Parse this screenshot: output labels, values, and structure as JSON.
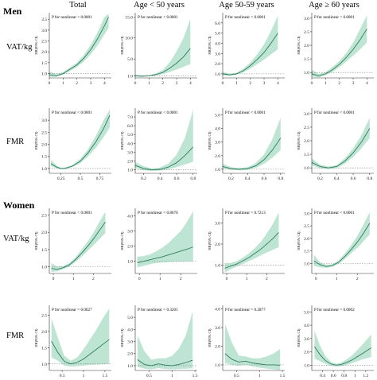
{
  "figure": {
    "sections": [
      "Men",
      "Women"
    ],
    "columns": [
      "Total",
      "Age < 50 years",
      "Age 50-59 years",
      "Age ≥ 60 years"
    ],
    "ylabel": "HR(95% CI)"
  },
  "colors": {
    "band": "#a8dcc6",
    "curve": "#2e7d5b",
    "reference": "#888888"
  },
  "chart_data": [
    {
      "section": "Men",
      "row": "VAT/kg",
      "column": "Total",
      "type": "area",
      "p_text": "P for nonlinear < 0.0001",
      "xlim": [
        0,
        4.5
      ],
      "ylim": [
        0.8,
        3.8
      ],
      "xticks": [
        0,
        1,
        2,
        3,
        4
      ],
      "yticks": [
        1.0,
        1.5,
        2.0,
        2.5,
        3.0,
        3.5
      ],
      "ref": 1.0,
      "x": [
        0,
        0.5,
        1,
        1.5,
        2,
        2.5,
        3,
        3.5,
        4,
        4.3
      ],
      "y": [
        0.95,
        0.9,
        1.0,
        1.2,
        1.4,
        1.7,
        2.1,
        2.6,
        3.2,
        3.6
      ],
      "lower": [
        0.85,
        0.85,
        0.95,
        1.12,
        1.3,
        1.55,
        1.88,
        2.3,
        2.8,
        3.1
      ],
      "upper": [
        1.1,
        0.97,
        1.06,
        1.28,
        1.5,
        1.85,
        2.32,
        2.9,
        3.6,
        3.75
      ]
    },
    {
      "section": "Men",
      "row": "VAT/kg",
      "column": "Age < 50 years",
      "type": "area",
      "p_text": "P for nonlinear < 0.0001",
      "xlim": [
        0,
        4.5
      ],
      "ylim": [
        0.5,
        16
      ],
      "xticks": [
        0,
        1,
        2,
        3,
        4
      ],
      "yticks": [
        1.0,
        5.0,
        10.0,
        15.0
      ],
      "ref": 1.0,
      "x": [
        0,
        0.5,
        1,
        1.5,
        2,
        2.5,
        3,
        3.5,
        4
      ],
      "y": [
        1.0,
        0.9,
        1.0,
        1.3,
        1.8,
        2.8,
        4.0,
        5.5,
        7.5
      ],
      "lower": [
        0.8,
        0.75,
        0.9,
        1.1,
        1.4,
        1.9,
        2.5,
        3.1,
        3.8
      ],
      "upper": [
        1.3,
        1.05,
        1.15,
        1.6,
        2.4,
        4.2,
        6.8,
        10.0,
        14.5
      ]
    },
    {
      "section": "Men",
      "row": "VAT/kg",
      "column": "Age 50-59 years",
      "type": "area",
      "p_text": "P for nonlinear < 0.0001",
      "xlim": [
        0,
        4.5
      ],
      "ylim": [
        0.6,
        7
      ],
      "xticks": [
        0,
        1,
        2,
        3,
        4
      ],
      "yticks": [
        1.0,
        2.0,
        3.0,
        4.0,
        5.0,
        6.0
      ],
      "ref": 1.0,
      "x": [
        0,
        0.5,
        1,
        1.5,
        2,
        2.5,
        3,
        3.5,
        4
      ],
      "y": [
        1.0,
        0.9,
        1.0,
        1.3,
        1.8,
        2.4,
        3.1,
        4.0,
        5.0
      ],
      "lower": [
        0.85,
        0.8,
        0.92,
        1.15,
        1.5,
        1.95,
        2.4,
        2.9,
        3.4
      ],
      "upper": [
        1.2,
        1.0,
        1.1,
        1.5,
        2.1,
        2.9,
        3.9,
        5.2,
        6.7
      ]
    },
    {
      "section": "Men",
      "row": "VAT/kg",
      "column": "Age ≥ 60 years",
      "type": "area",
      "p_text": "P for nonlinear < 0.0001",
      "xlim": [
        0,
        4.5
      ],
      "ylim": [
        0.8,
        3.2
      ],
      "xticks": [
        0,
        1,
        2,
        3,
        4
      ],
      "yticks": [
        1.0,
        1.5,
        2.0,
        2.5,
        3.0
      ],
      "ref": 1.0,
      "x": [
        0,
        0.5,
        1,
        1.5,
        2,
        2.5,
        3,
        3.5,
        4
      ],
      "y": [
        0.95,
        0.88,
        0.95,
        1.1,
        1.3,
        1.55,
        1.85,
        2.2,
        2.6
      ],
      "lower": [
        0.85,
        0.82,
        0.9,
        1.02,
        1.2,
        1.4,
        1.62,
        1.85,
        2.1
      ],
      "upper": [
        1.1,
        0.95,
        1.01,
        1.2,
        1.42,
        1.72,
        2.1,
        2.6,
        3.1
      ]
    },
    {
      "section": "Men",
      "row": "FMR",
      "column": "Total",
      "type": "area",
      "p_text": "P for nonlinear < 0.0001",
      "xlim": [
        0.1,
        0.9
      ],
      "ylim": [
        0.8,
        3.5
      ],
      "xticks": [
        0.25,
        0.5,
        0.75
      ],
      "yticks": [
        1.0,
        1.5,
        2.0,
        2.5,
        3.0
      ],
      "ref": 1.0,
      "x": [
        0.12,
        0.2,
        0.25,
        0.3,
        0.4,
        0.5,
        0.6,
        0.7,
        0.8,
        0.88
      ],
      "y": [
        1.2,
        1.05,
        1.0,
        1.0,
        1.1,
        1.3,
        1.65,
        2.1,
        2.65,
        3.2
      ],
      "lower": [
        1.1,
        1.0,
        0.97,
        0.97,
        1.06,
        1.22,
        1.5,
        1.85,
        2.3,
        2.7
      ],
      "upper": [
        1.35,
        1.1,
        1.03,
        1.04,
        1.15,
        1.4,
        1.8,
        2.35,
        3.0,
        3.45
      ]
    },
    {
      "section": "Men",
      "row": "FMR",
      "column": "Age < 50 years",
      "type": "area",
      "p_text": "P for nonlinear < 0.0001",
      "xlim": [
        0.1,
        0.85
      ],
      "ylim": [
        0.6,
        8
      ],
      "xticks": [
        0.2,
        0.4,
        0.6,
        0.8
      ],
      "yticks": [
        1.0,
        2.0,
        3.0,
        4.0,
        5.0,
        6.0,
        7.0
      ],
      "ref": 1.0,
      "x": [
        0.1,
        0.2,
        0.3,
        0.4,
        0.5,
        0.6,
        0.7,
        0.8
      ],
      "y": [
        1.5,
        1.15,
        1.0,
        1.05,
        1.3,
        1.8,
        2.6,
        3.6
      ],
      "lower": [
        1.2,
        0.95,
        0.85,
        0.9,
        1.05,
        1.3,
        1.6,
        1.9
      ],
      "upper": [
        1.9,
        1.4,
        1.15,
        1.25,
        1.7,
        2.7,
        4.6,
        7.8
      ]
    },
    {
      "section": "Men",
      "row": "FMR",
      "column": "Age 50-59 years",
      "type": "area",
      "p_text": "P for nonlinear < 0.0001",
      "xlim": [
        0.1,
        0.85
      ],
      "ylim": [
        0.7,
        5.5
      ],
      "xticks": [
        0.2,
        0.4,
        0.6,
        0.8
      ],
      "yticks": [
        1.0,
        2.0,
        3.0,
        4.0,
        5.0
      ],
      "ref": 1.0,
      "x": [
        0.1,
        0.2,
        0.3,
        0.4,
        0.5,
        0.6,
        0.7,
        0.8
      ],
      "y": [
        1.2,
        1.05,
        1.0,
        1.05,
        1.25,
        1.7,
        2.4,
        3.3
      ],
      "lower": [
        1.05,
        0.95,
        0.92,
        0.95,
        1.1,
        1.4,
        1.85,
        2.4
      ],
      "upper": [
        1.4,
        1.15,
        1.08,
        1.15,
        1.45,
        2.1,
        3.2,
        4.8
      ]
    },
    {
      "section": "Men",
      "row": "FMR",
      "column": "Age ≥ 60 years",
      "type": "area",
      "p_text": "P for nonlinear < 0.0001",
      "xlim": [
        0.1,
        0.85
      ],
      "ylim": [
        0.8,
        3.2
      ],
      "xticks": [
        0.2,
        0.4,
        0.6,
        0.8
      ],
      "yticks": [
        1.0,
        1.5,
        2.0,
        2.5,
        3.0
      ],
      "ref": 1.0,
      "x": [
        0.1,
        0.2,
        0.3,
        0.4,
        0.5,
        0.6,
        0.7,
        0.8
      ],
      "y": [
        1.2,
        1.05,
        1.0,
        1.05,
        1.25,
        1.55,
        1.95,
        2.45
      ],
      "lower": [
        1.1,
        0.98,
        0.95,
        0.99,
        1.15,
        1.4,
        1.72,
        2.1
      ],
      "upper": [
        1.35,
        1.12,
        1.05,
        1.1,
        1.35,
        1.72,
        2.2,
        2.85
      ]
    },
    {
      "section": "Women",
      "row": "VAT/kg",
      "column": "Total",
      "type": "area",
      "p_text": "P for nonlinear < 0.0001",
      "xlim": [
        -0.2,
        2.9
      ],
      "ylim": [
        0.8,
        2.7
      ],
      "xticks": [
        0,
        1,
        2
      ],
      "yticks": [
        1.0,
        1.5,
        2.0,
        2.5
      ],
      "ref": 1.0,
      "x": [
        -0.1,
        0.2,
        0.5,
        0.8,
        1.1,
        1.4,
        1.7,
        2.0,
        2.3,
        2.6
      ],
      "y": [
        0.95,
        0.92,
        0.97,
        1.05,
        1.2,
        1.38,
        1.58,
        1.8,
        2.05,
        2.3
      ],
      "lower": [
        0.85,
        0.86,
        0.93,
        1.0,
        1.13,
        1.28,
        1.45,
        1.62,
        1.8,
        1.98
      ],
      "upper": [
        1.1,
        1.0,
        1.02,
        1.1,
        1.27,
        1.48,
        1.72,
        1.98,
        2.3,
        2.6
      ]
    },
    {
      "section": "Women",
      "row": "VAT/kg",
      "column": "Age < 50 years",
      "type": "area",
      "p_text": "P for nonlinear = 0.8676",
      "xlim": [
        -0.2,
        2.8
      ],
      "ylim": [
        0.2,
        4.5
      ],
      "xticks": [
        0,
        1,
        2
      ],
      "yticks": [
        1.0,
        2.0,
        3.0,
        4.0
      ],
      "ref": 1.0,
      "x": [
        -0.1,
        0.2,
        0.5,
        0.8,
        1.1,
        1.4,
        1.7,
        2.0,
        2.3,
        2.6
      ],
      "y": [
        0.9,
        1.0,
        1.1,
        1.2,
        1.3,
        1.42,
        1.55,
        1.68,
        1.8,
        1.95
      ],
      "lower": [
        0.6,
        0.7,
        0.8,
        0.88,
        0.92,
        0.95,
        0.97,
        0.98,
        0.99,
        1.0
      ],
      "upper": [
        1.3,
        1.35,
        1.45,
        1.65,
        1.9,
        2.2,
        2.6,
        3.0,
        3.6,
        4.3
      ]
    },
    {
      "section": "Women",
      "row": "VAT/kg",
      "column": "Age 50-59 years",
      "type": "area",
      "p_text": "P for nonlinear = 0.7213",
      "xlim": [
        -0.2,
        2.9
      ],
      "ylim": [
        0.6,
        3.7
      ],
      "xticks": [
        0,
        1,
        2
      ],
      "yticks": [
        1.0,
        2.0,
        3.0
      ],
      "ref": 1.0,
      "x": [
        -0.1,
        0.2,
        0.5,
        0.8,
        1.1,
        1.4,
        1.7,
        2.0,
        2.3,
        2.6
      ],
      "y": [
        0.85,
        0.95,
        1.05,
        1.2,
        1.35,
        1.55,
        1.75,
        2.0,
        2.25,
        2.55
      ],
      "lower": [
        0.65,
        0.8,
        0.93,
        1.05,
        1.18,
        1.32,
        1.45,
        1.6,
        1.72,
        1.85
      ],
      "upper": [
        1.1,
        1.1,
        1.18,
        1.35,
        1.55,
        1.8,
        2.1,
        2.5,
        2.95,
        3.5
      ]
    },
    {
      "section": "Women",
      "row": "VAT/kg",
      "column": "Age ≥ 60 years",
      "type": "area",
      "p_text": "P for nonlinear < 0.0001",
      "xlim": [
        -0.2,
        2.8
      ],
      "ylim": [
        0.6,
        3.2
      ],
      "xticks": [
        0,
        1,
        2
      ],
      "yticks": [
        1.0,
        1.5,
        2.0,
        2.5,
        3.0
      ],
      "ref": 1.0,
      "x": [
        -0.1,
        0.2,
        0.5,
        0.8,
        1.1,
        1.4,
        1.7,
        2.0,
        2.3,
        2.6
      ],
      "y": [
        1.1,
        0.95,
        0.88,
        0.92,
        1.05,
        1.28,
        1.55,
        1.85,
        2.2,
        2.6
      ],
      "lower": [
        0.9,
        0.85,
        0.82,
        0.87,
        0.98,
        1.18,
        1.4,
        1.62,
        1.88,
        2.15
      ],
      "upper": [
        1.35,
        1.05,
        0.94,
        0.97,
        1.12,
        1.4,
        1.72,
        2.1,
        2.55,
        3.05
      ]
    },
    {
      "section": "Women",
      "row": "FMR",
      "column": "Total",
      "type": "area",
      "p_text": "P for nonlinear = 0.0027",
      "xlim": [
        0.2,
        1.65
      ],
      "ylim": [
        0.8,
        2.8
      ],
      "xticks": [
        0.5,
        1.0,
        1.5
      ],
      "yticks": [
        1.0,
        1.5,
        2.0,
        2.5
      ],
      "ref": 1.0,
      "x": [
        0.25,
        0.4,
        0.55,
        0.7,
        0.85,
        1.0,
        1.15,
        1.3,
        1.45,
        1.6
      ],
      "y": [
        1.7,
        1.35,
        1.08,
        1.0,
        1.05,
        1.15,
        1.3,
        1.45,
        1.6,
        1.75
      ],
      "lower": [
        1.2,
        1.1,
        0.95,
        0.92,
        0.93,
        0.95,
        0.97,
        0.98,
        0.99,
        1.0
      ],
      "upper": [
        2.4,
        1.8,
        1.25,
        1.1,
        1.2,
        1.45,
        1.75,
        2.05,
        2.4,
        2.7
      ]
    },
    {
      "section": "Women",
      "row": "FMR",
      "column": "Age < 50 years",
      "type": "area",
      "p_text": "P for nonlinear = 0.3201",
      "xlim": [
        0.2,
        1.55
      ],
      "ylim": [
        0.6,
        6
      ],
      "xticks": [
        0.5,
        1.0,
        1.5
      ],
      "yticks": [
        1.0,
        2.0,
        3.0,
        4.0,
        5.0
      ],
      "ref": 1.0,
      "x": [
        0.25,
        0.4,
        0.55,
        0.7,
        0.85,
        1.0,
        1.15,
        1.3,
        1.45
      ],
      "y": [
        1.5,
        1.1,
        1.0,
        1.15,
        1.05,
        1.0,
        1.1,
        1.25,
        1.45
      ],
      "lower": [
        0.9,
        0.75,
        0.7,
        0.8,
        0.72,
        0.7,
        0.72,
        0.75,
        0.78
      ],
      "upper": [
        3.5,
        2.2,
        1.5,
        1.6,
        1.6,
        1.8,
        2.4,
        3.5,
        5.5
      ]
    },
    {
      "section": "Women",
      "row": "FMR",
      "column": "Age 50-59 years",
      "type": "area",
      "p_text": "P for nonlinear = 0.2877",
      "xlim": [
        0.2,
        1.55
      ],
      "ylim": [
        0.7,
        4.2
      ],
      "xticks": [
        0.5,
        1.0,
        1.5
      ],
      "yticks": [
        1.0,
        2.0,
        3.0,
        4.0
      ],
      "ref": 1.0,
      "x": [
        0.25,
        0.4,
        0.55,
        0.7,
        0.85,
        1.0,
        1.15,
        1.3,
        1.45
      ],
      "y": [
        1.6,
        1.3,
        1.15,
        1.2,
        1.1,
        1.05,
        1.0,
        1.0,
        0.98
      ],
      "lower": [
        1.1,
        1.0,
        0.95,
        1.0,
        0.92,
        0.85,
        0.8,
        0.76,
        0.72
      ],
      "upper": [
        3.2,
        2.2,
        1.5,
        1.45,
        1.35,
        1.35,
        1.45,
        1.6,
        1.85
      ]
    },
    {
      "section": "Women",
      "row": "FMR",
      "column": "Age ≥ 60 years",
      "type": "area",
      "p_text": "P for nonlinear = 0.0002",
      "xlim": [
        0.2,
        1.35
      ],
      "ylim": [
        0.6,
        5.5
      ],
      "xticks": [
        0.4,
        0.6,
        0.8,
        1.0,
        1.2
      ],
      "yticks": [
        1.0,
        2.0,
        3.0,
        4.0,
        5.0
      ],
      "ref": 1.0,
      "x": [
        0.25,
        0.35,
        0.45,
        0.55,
        0.65,
        0.75,
        0.85,
        0.95,
        1.05,
        1.15,
        1.3
      ],
      "y": [
        2.4,
        1.8,
        1.35,
        1.1,
        1.0,
        1.05,
        1.2,
        1.4,
        1.65,
        1.9,
        2.3
      ],
      "lower": [
        1.5,
        1.3,
        1.1,
        0.95,
        0.9,
        0.92,
        1.02,
        1.15,
        1.3,
        1.45,
        1.6
      ],
      "upper": [
        3.6,
        2.5,
        1.7,
        1.25,
        1.1,
        1.2,
        1.45,
        1.75,
        2.15,
        2.6,
        3.3
      ]
    }
  ]
}
